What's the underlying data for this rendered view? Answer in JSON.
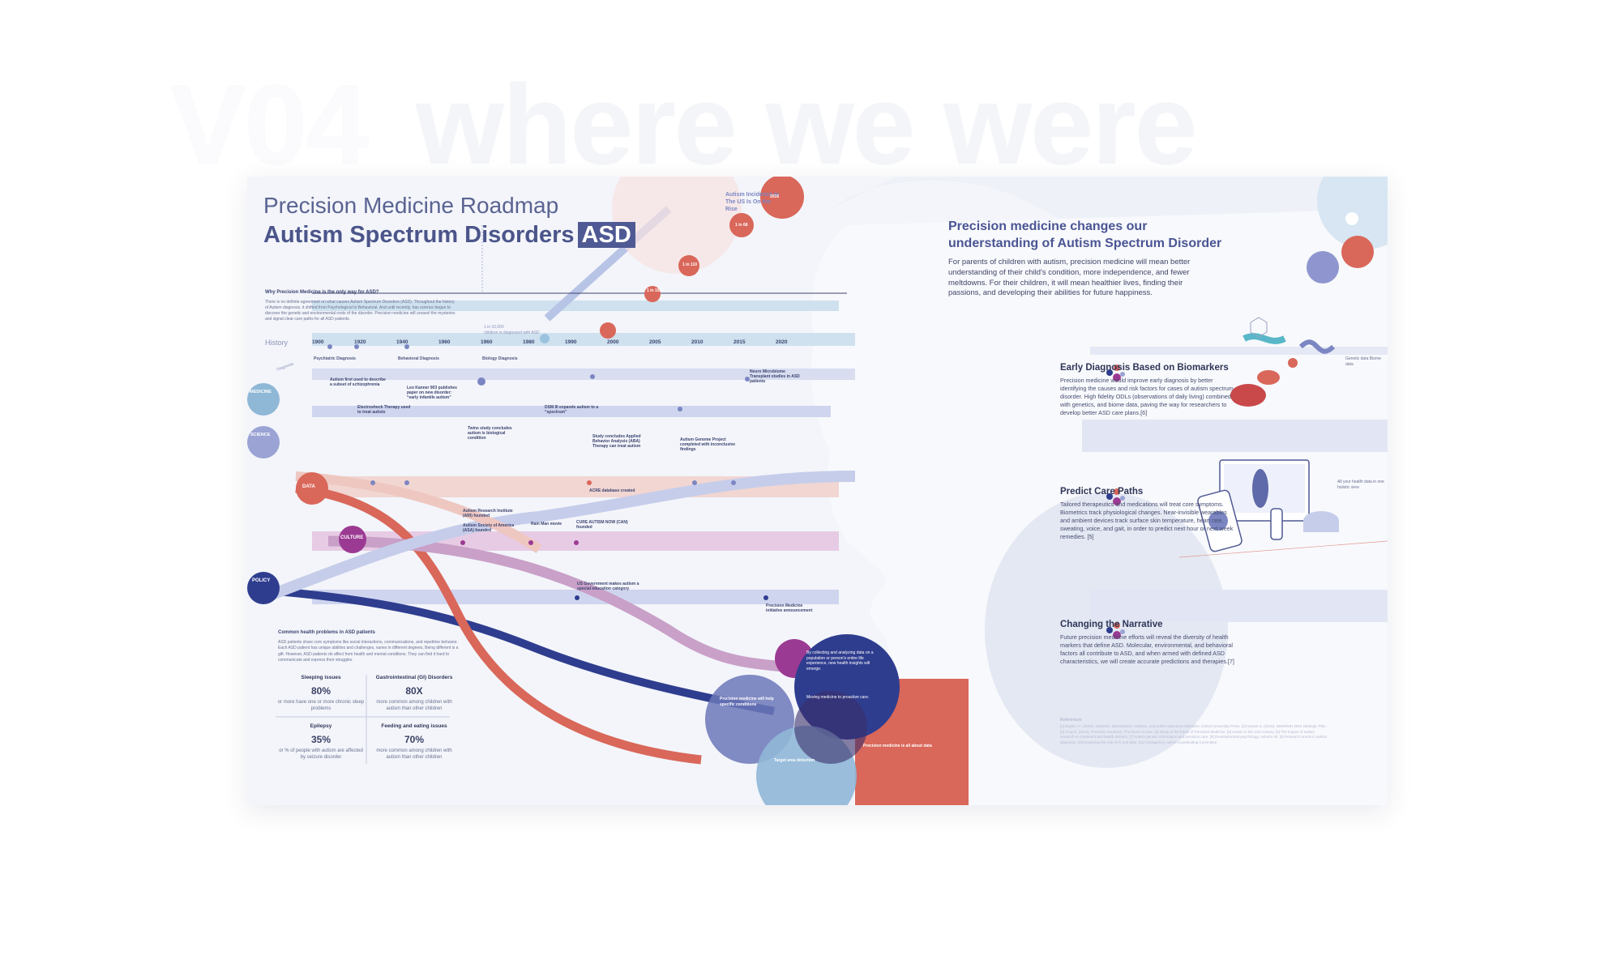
{
  "header": {
    "version": "V04",
    "subtitle": "where we were"
  },
  "poster": {
    "title_line1": "Precision Medicine Roadmap",
    "title_line2": "Autism Spectrum Disorders",
    "title_badge": "ASD",
    "why_heading": "Why Precision Medicine is the only way for ASD?",
    "why_body": "There is no definite agreement on what causes Autism Spectrum Disorders (ASD). Throughout the history of Autism diagnosis, it shifted from Psychological to Behavioral. And until recently, has science begun to discover the genetic and environmental roots of the disorder. Precision medicine will unravel the mysteries and signal clear care paths for all ASD patients.",
    "history_label": "History",
    "incidence_label": "Autism Incidence In The US Is On the Rise",
    "incidence_points": [
      {
        "year": "1960",
        "ratio": "1 in 10,000"
      },
      {
        "year": "1995",
        "ratio": "1 in 1..."
      },
      {
        "year": "2000",
        "ratio": "1 in 150"
      },
      {
        "year": "2008",
        "ratio": "1 in 110"
      },
      {
        "year": "2014",
        "ratio": "1 in 68"
      },
      {
        "year": "2016",
        "ratio": "1 in 59 children is diagnosed with..."
      }
    ],
    "incidence_note": "children is diagnosed with ASD",
    "years": [
      "1900",
      "1920",
      "1940",
      "1960",
      "1980",
      "1990",
      "2000",
      "2005",
      "2010",
      "2015",
      "2020"
    ],
    "diagnosis_bands": [
      "Psychiatric Diagnosis",
      "Behavioral Diagnosis",
      "Biology Diagnosis"
    ],
    "diagnosis_left": "Diagnosis",
    "categories": [
      "MEDICINE",
      "SCIENCE",
      "DATA",
      "CULTURE",
      "POLICY"
    ],
    "events": [
      "Autism first used to describe a subset of schizophrenia",
      "Leo Kanner 903 publishes paper on new disorder: “early infantile autism”",
      "Electroshock Therapy used to treat autists",
      "Twins study concludes autism is biological condition",
      "DSM III expands autism to a “spectrum”",
      "Study concludes Applied Behavior Analysis (ABA) Therapy can treat autism",
      "Autism Genome Project completed with inconclusive findings",
      "Autism Research Institute (ARI) founded",
      "Autism Society of America (ASA) founded",
      "Rain Man movie",
      "CURE AUTISM NOW (CAN) founded",
      "US Government makes autism a special education category",
      "ACRE database created",
      "Precision Medicine initiative announcement",
      "Neuro Microbiome Transplant studies in ASD patients"
    ],
    "common_heading": "Common health problems in ASD patients",
    "common_body": "ASD patients share core symptoms like social interactions, communications, and repetitive behavior. Each ASD patient has unique abilities and challenges, varies in different degrees. Being different is a gift. However, ASD patients do affect from health and mental conditions. They can find it hard to communicate and express their struggles.",
    "stats": [
      {
        "label": "Sleeping issues",
        "value": "80%",
        "desc": "or more have one or more chronic sleep problems"
      },
      {
        "label": "Gastrointestinal (GI) Disorders",
        "value": "80X",
        "desc": "more common among children with autism than other children"
      },
      {
        "label": "Epilepsy",
        "value": "35%",
        "desc": "or % of people with autism are affected by seizure disorder"
      },
      {
        "label": "Feeding and eating issues",
        "value": "70%",
        "desc": "more common among children with autism than other children"
      }
    ],
    "bubbles": [
      "Precision medicine will help specific conditions",
      "By collecting and analyzing data on a population or person's entire life experience, new health insights will emerge.",
      "Moving medicine to proactive care.",
      "Target area detection",
      "Precision medicine is all about data"
    ]
  },
  "right": {
    "headline": "Precision medicine changes our understanding of Autism Spectrum Disorder",
    "intro": "For parents of children with autism, precision medicine will mean better understanding of their child's condition, more independence, and fewer meltdowns. For their children, it will mean healthier lives, finding their passions, and developing their abilities for future happiness.",
    "sections": [
      {
        "title": "Early Diagnosis Based on Biomarkers",
        "body": "Precision medicine would improve early diagnosis by better identifying the causes and risk factors for cases of autism spectrum disorder. High fidelity ODLs (observations of daily living) combined with genetics, and biome data, paving the way for researchers to develop better ASD care plans.[6]",
        "note": "Genetic data Biome data"
      },
      {
        "title": "Predict Care Paths",
        "body": "Tailored therapeutics and medications will treat core symptoms. Biometrics track physiological changes. Near-invisible wearables and ambient devices track surface skin temperature, heart rate, sweating, voice, and gait, in order to predict next hour or next week remedies. [5]",
        "note": "All your health data in one holistic view"
      },
      {
        "title": "Changing the Narrative",
        "body": "Future precision medicine efforts will reveal the diversity of health markers that define ASD. Molecular, environmental, and behavioral factors all contribute to ASD, and when armed with defined ASD characteristics, we will create accurate predictions and therapies.[7]",
        "note": ""
      }
    ],
    "references_heading": "References",
    "references": "[1] Baykin, H. (2018). Genetics, transmission, nutrition, and autism spectrum disorders. Oxford University Press. [2] Hyman S. (2016). NIMH/NIH 2016 Strategic Plan. [3] Gray B. (2016). Precision medicine: The future of care. [4] Study of the future of Precision Medicine. [5] Autism in the 21st century. [6] The impact of autism research on treatment and health delivery. [7] Autism genetic information and precision care. [8] Developmental psychology, Volume 40. [9] Research trends in autism diagnosis. [10] Exploring the role of AI and data. [11] Interagency Autism Coordinating Committee."
  },
  "colors": {
    "navy": "#2f3d8f",
    "red": "#d9675a",
    "lavender": "#a9b3de",
    "pink": "#c9a0c8",
    "purple": "#9b3a93",
    "lightblue": "#cfe1ef"
  }
}
